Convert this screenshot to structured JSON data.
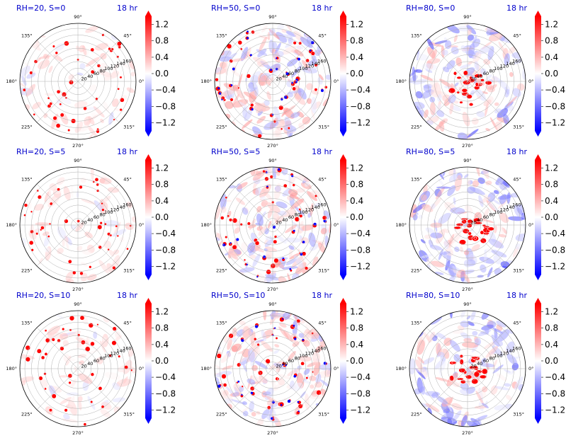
{
  "figure": {
    "colormap": {
      "name": "bwr",
      "low": "#0000ff",
      "mid": "#ffffff",
      "high": "#ff0000"
    },
    "grid_color": "#b0b0b0",
    "title_color": "#0000cc"
  },
  "chart_data": [
    {
      "type": "heatmap",
      "projection": "polar",
      "title": "RH=20, S=0",
      "time_label": "18 hr",
      "rh": 20,
      "s": 0,
      "pattern": "sparse-cells"
    },
    {
      "type": "heatmap",
      "projection": "polar",
      "title": "RH=50, S=0",
      "time_label": "18 hr",
      "rh": 50,
      "s": 0,
      "pattern": "scattered-cells"
    },
    {
      "type": "heatmap",
      "projection": "polar",
      "title": "RH=80, S=0",
      "time_label": "18 hr",
      "rh": 80,
      "s": 0,
      "pattern": "organized-core"
    },
    {
      "type": "heatmap",
      "projection": "polar",
      "title": "RH=20, S=5",
      "time_label": "18 hr",
      "rh": 20,
      "s": 5,
      "pattern": "sparse-cells"
    },
    {
      "type": "heatmap",
      "projection": "polar",
      "title": "RH=50, S=5",
      "time_label": "18 hr",
      "rh": 50,
      "s": 5,
      "pattern": "scattered-cells"
    },
    {
      "type": "heatmap",
      "projection": "polar",
      "title": "RH=80, S=5",
      "time_label": "18 hr",
      "rh": 80,
      "s": 5,
      "pattern": "organized-core"
    },
    {
      "type": "heatmap",
      "projection": "polar",
      "title": "RH=20, S=10",
      "time_label": "18 hr",
      "rh": 20,
      "s": 10,
      "pattern": "sparse-cells"
    },
    {
      "type": "heatmap",
      "projection": "polar",
      "title": "RH=50, S=10",
      "time_label": "18 hr",
      "rh": 50,
      "s": 10,
      "pattern": "scattered-cells"
    },
    {
      "type": "heatmap",
      "projection": "polar",
      "title": "RH=80, S=10",
      "time_label": "18 hr",
      "rh": 80,
      "s": 10,
      "pattern": "organized-core"
    }
  ],
  "polar_axes": {
    "angle_ticks": [
      {
        "deg": 0,
        "label": "0°"
      },
      {
        "deg": 45,
        "label": "45°"
      },
      {
        "deg": 90,
        "label": "90°"
      },
      {
        "deg": 135,
        "label": "135°"
      },
      {
        "deg": 180,
        "label": "180°"
      },
      {
        "deg": 225,
        "label": "225°"
      },
      {
        "deg": 270,
        "label": "270°"
      },
      {
        "deg": 315,
        "label": "315°"
      }
    ],
    "radial_ticks": [
      20,
      40,
      60,
      80,
      100,
      120,
      140,
      160
    ],
    "radial_labels": [
      "20",
      "40",
      "60",
      "80",
      "100",
      "120",
      "140",
      "160"
    ],
    "rmax": 175,
    "radial_label_angle_deg": 22.5
  },
  "colorbar": {
    "vmin": -1.4,
    "vmax": 1.4,
    "extend": "both",
    "ticks": [
      1.2,
      0.8,
      0.4,
      0.0,
      -0.4,
      -0.8,
      -1.2
    ],
    "tick_labels": [
      "1.2",
      "0.8",
      "0.4",
      "0.0",
      "−0.4",
      "−0.8",
      "−1.2"
    ]
  }
}
